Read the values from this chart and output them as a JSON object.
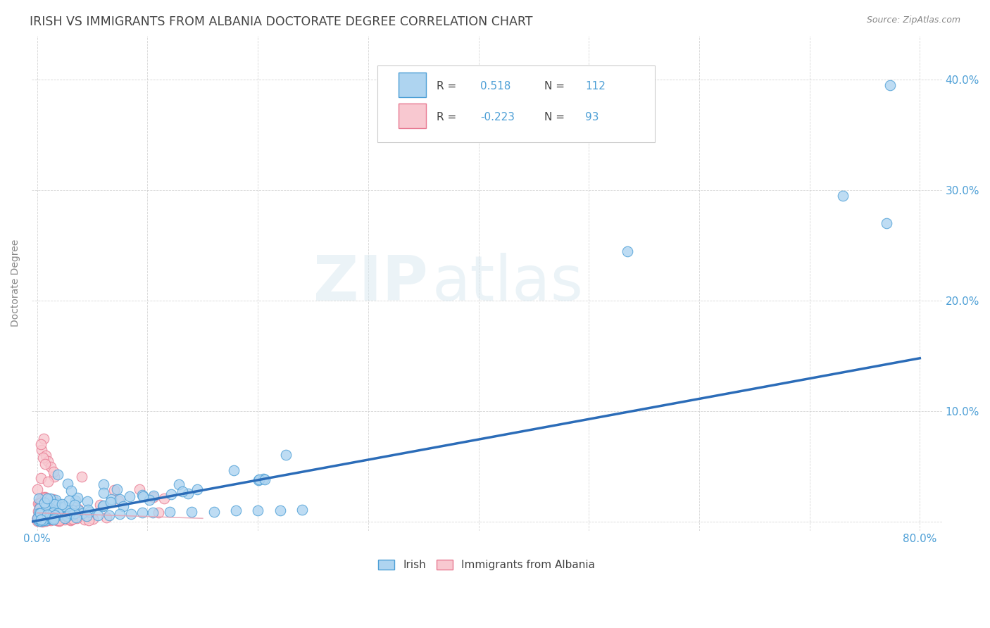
{
  "title": "IRISH VS IMMIGRANTS FROM ALBANIA DOCTORATE DEGREE CORRELATION CHART",
  "source": "Source: ZipAtlas.com",
  "ylabel": "Doctorate Degree",
  "xlim": [
    -0.005,
    0.82
  ],
  "ylim": [
    -0.008,
    0.44
  ],
  "xtick_vals": [
    0.0,
    0.1,
    0.2,
    0.3,
    0.4,
    0.5,
    0.6,
    0.7,
    0.8
  ],
  "xtick_labels": [
    "0.0%",
    "",
    "",
    "",
    "",
    "",
    "",
    "",
    "80.0%"
  ],
  "ytick_vals": [
    0.0,
    0.1,
    0.2,
    0.3,
    0.4
  ],
  "ytick_labels_right": [
    "",
    "10.0%",
    "20.0%",
    "30.0%",
    "40.0%"
  ],
  "irish_color": "#aed4f0",
  "irish_edge_color": "#4d9fd6",
  "albania_color": "#f8c8d0",
  "albania_edge_color": "#e87a92",
  "trend_irish_color": "#2b6cb8",
  "trend_alba_color": "#e8a0b0",
  "R_irish": "0.518",
  "N_irish": "112",
  "R_albania": "-0.223",
  "N_albania": "93",
  "watermark_zip": "ZIP",
  "watermark_atlas": "atlas",
  "background_color": "#ffffff",
  "grid_color": "#cccccc",
  "title_color": "#444444",
  "axis_label_color": "#4d9fd6",
  "text_color": "#444444",
  "legend_label_irish": "Irish",
  "legend_label_albania": "Immigrants from Albania"
}
